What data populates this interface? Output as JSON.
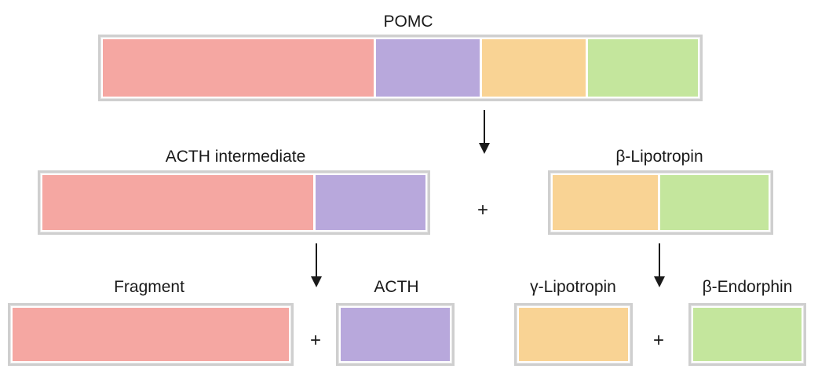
{
  "colors": {
    "fragment": "#f5a7a2",
    "acth": "#b8a8dc",
    "gamma_lipotropin": "#f9d394",
    "beta_endorphin": "#c4e69d",
    "frame": "#cfcfcf",
    "text": "#1a1a1a"
  },
  "labels": {
    "pomc": "POMC",
    "acth_intermediate": "ACTH intermediate",
    "beta_lipotropin": "β-Lipotropin",
    "fragment": "Fragment",
    "acth": "ACTH",
    "gamma_lipotropin": "γ-Lipotropin",
    "beta_endorphin": "β-Endorphin",
    "plus": "+"
  }
}
